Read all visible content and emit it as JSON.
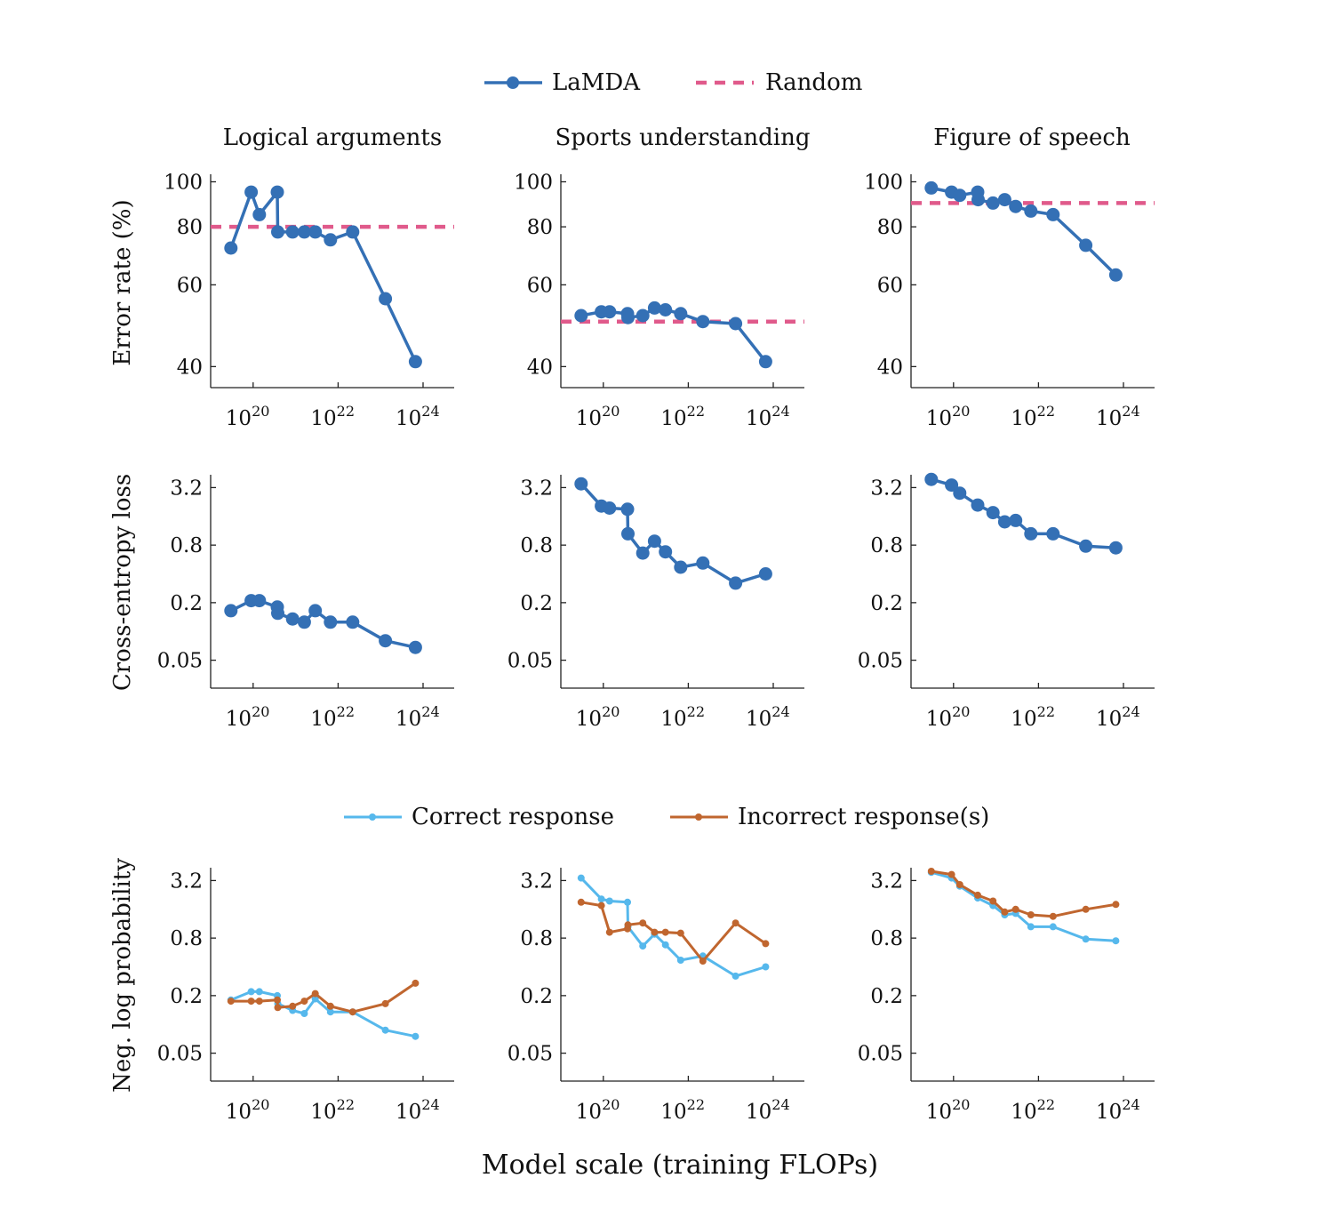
{
  "legend_top": [
    {
      "label": "LaMDA",
      "color": "#3470b5",
      "style": "line-marker"
    },
    {
      "label": "Random",
      "color": "#e05a8b",
      "style": "dashed"
    }
  ],
  "legend_bottom": [
    {
      "label": "Correct response",
      "color": "#56b8ec",
      "style": "line-marker-small"
    },
    {
      "label": "Incorrect response(s)",
      "color": "#c0662f",
      "style": "line-marker-small"
    }
  ],
  "panel_titles": [
    "Logical arguments",
    "Sports understanding",
    "Figure of speech"
  ],
  "row_labels": [
    "Error rate (%)",
    "Cross-entropy loss",
    "Neg. log probability"
  ],
  "xlabel": "Model scale (training FLOPs)",
  "chart_data": [
    {
      "type": "line",
      "title": "Logical arguments",
      "ylabel": "Error rate (%)",
      "x_scale": "log",
      "y_scale": "log",
      "x_ticks": [
        {
          "base": "10",
          "exp": "20",
          "value": 1e+20
        },
        {
          "base": "10",
          "exp": "22",
          "value": 1e+22
        },
        {
          "base": "10",
          "exp": "24",
          "value": 1e+24
        }
      ],
      "y_ticks": [
        {
          "label": "40",
          "value": 40
        },
        {
          "label": "60",
          "value": 60
        },
        {
          "label": "80",
          "value": 80
        },
        {
          "label": "100",
          "value": 100
        }
      ],
      "xlim": [
        1e+19,
        5.4e+24
      ],
      "ylim": [
        38,
        102
      ],
      "series": [
        {
          "name": "LaMDA",
          "color": "#3470b5",
          "x": [
            3e+19,
            9e+19,
            1.4e+20,
            3.7e+20,
            3.8e+20,
            8.5e+20,
            1.6e+21,
            2.9e+21,
            6.6e+21,
            2.2e+22,
            1.3e+23,
            6.6e+23
          ],
          "y": [
            72,
            95,
            85,
            95,
            78,
            78,
            78,
            78,
            75,
            78,
            56,
            41
          ]
        },
        {
          "name": "Random",
          "color": "#e05a8b",
          "dashed": true,
          "x": [
            1e+19,
            5.4e+24
          ],
          "y": [
            80,
            80
          ]
        }
      ]
    },
    {
      "type": "line",
      "title": "Sports understanding",
      "ylabel": "",
      "x_scale": "log",
      "y_scale": "log",
      "x_ticks": [
        {
          "base": "10",
          "exp": "20",
          "value": 1e+20
        },
        {
          "base": "10",
          "exp": "22",
          "value": 1e+22
        },
        {
          "base": "10",
          "exp": "24",
          "value": 1e+24
        }
      ],
      "y_ticks": [
        {
          "label": "40",
          "value": 40
        },
        {
          "label": "60",
          "value": 60
        },
        {
          "label": "80",
          "value": 80
        },
        {
          "label": "100",
          "value": 100
        }
      ],
      "xlim": [
        1e+19,
        5.4e+24
      ],
      "ylim": [
        38,
        102
      ],
      "series": [
        {
          "name": "LaMDA",
          "color": "#3470b5",
          "x": [
            3e+19,
            9e+19,
            1.4e+20,
            3.7e+20,
            3.8e+20,
            8.5e+20,
            1.6e+21,
            2.9e+21,
            6.6e+21,
            2.2e+22,
            1.3e+23,
            6.6e+23
          ],
          "y": [
            51.5,
            52.5,
            52.5,
            52,
            51,
            51.5,
            53.5,
            53,
            52,
            50,
            49.5,
            41
          ]
        },
        {
          "name": "Random",
          "color": "#e05a8b",
          "dashed": true,
          "x": [
            1e+19,
            5.4e+24
          ],
          "y": [
            50,
            50
          ]
        }
      ]
    },
    {
      "type": "line",
      "title": "Figure of speech",
      "ylabel": "",
      "x_scale": "log",
      "y_scale": "log",
      "x_ticks": [
        {
          "base": "10",
          "exp": "20",
          "value": 1e+20
        },
        {
          "base": "10",
          "exp": "22",
          "value": 1e+22
        },
        {
          "base": "10",
          "exp": "24",
          "value": 1e+24
        }
      ],
      "y_ticks": [
        {
          "label": "40",
          "value": 40
        },
        {
          "label": "60",
          "value": 60
        },
        {
          "label": "80",
          "value": 80
        },
        {
          "label": "100",
          "value": 100
        }
      ],
      "xlim": [
        1e+19,
        5.4e+24
      ],
      "ylim": [
        38,
        102
      ],
      "series": [
        {
          "name": "LaMDA",
          "color": "#3470b5",
          "x": [
            3e+19,
            9e+19,
            1.4e+20,
            3.7e+20,
            3.8e+20,
            8.5e+20,
            1.6e+21,
            2.9e+21,
            6.6e+21,
            2.2e+22,
            1.3e+23,
            6.6e+23
          ],
          "y": [
            97,
            95,
            93.5,
            95,
            91.5,
            90,
            91.5,
            88.5,
            86.5,
            85,
            73,
            63
          ]
        },
        {
          "name": "Random",
          "color": "#e05a8b",
          "dashed": true,
          "x": [
            1e+19,
            5.4e+24
          ],
          "y": [
            90,
            90
          ]
        }
      ]
    },
    {
      "type": "line",
      "title": "",
      "ylabel": "Cross-entropy loss",
      "x_scale": "log",
      "y_scale": "log",
      "x_ticks": [
        {
          "base": "10",
          "exp": "20",
          "value": 1e+20
        },
        {
          "base": "10",
          "exp": "22",
          "value": 1e+22
        },
        {
          "base": "10",
          "exp": "24",
          "value": 1e+24
        }
      ],
      "y_ticks": [
        {
          "label": "0.05",
          "value": 0.05
        },
        {
          "label": "0.2",
          "value": 0.2
        },
        {
          "label": "0.8",
          "value": 0.8
        },
        {
          "label": "3.2",
          "value": 3.2
        }
      ],
      "xlim": [
        1e+19,
        5.4e+24
      ],
      "ylim": [
        0.033,
        4.0
      ],
      "series": [
        {
          "name": "LaMDA",
          "color": "#3470b5",
          "x": [
            3e+19,
            9e+19,
            1.4e+20,
            3.7e+20,
            3.8e+20,
            8.5e+20,
            1.6e+21,
            2.9e+21,
            6.6e+21,
            2.2e+22,
            1.3e+23,
            6.6e+23
          ],
          "y": [
            0.165,
            0.21,
            0.21,
            0.18,
            0.155,
            0.135,
            0.125,
            0.165,
            0.125,
            0.125,
            0.08,
            0.068
          ]
        }
      ]
    },
    {
      "type": "line",
      "title": "",
      "ylabel": "",
      "x_scale": "log",
      "y_scale": "log",
      "x_ticks": [
        {
          "base": "10",
          "exp": "20",
          "value": 1e+20
        },
        {
          "base": "10",
          "exp": "22",
          "value": 1e+22
        },
        {
          "base": "10",
          "exp": "24",
          "value": 1e+24
        }
      ],
      "y_ticks": [
        {
          "label": "0.05",
          "value": 0.05
        },
        {
          "label": "0.2",
          "value": 0.2
        },
        {
          "label": "0.8",
          "value": 0.8
        },
        {
          "label": "3.2",
          "value": 3.2
        }
      ],
      "xlim": [
        1e+19,
        5.4e+24
      ],
      "ylim": [
        0.033,
        4.0
      ],
      "series": [
        {
          "name": "LaMDA",
          "color": "#3470b5",
          "x": [
            3e+19,
            9e+19,
            1.4e+20,
            3.7e+20,
            3.8e+20,
            8.5e+20,
            1.6e+21,
            2.9e+21,
            6.6e+21,
            2.2e+22,
            1.3e+23,
            6.6e+23
          ],
          "y": [
            3.5,
            2.05,
            1.95,
            1.9,
            1.05,
            0.66,
            0.88,
            0.68,
            0.47,
            0.52,
            0.32,
            0.4
          ]
        }
      ]
    },
    {
      "type": "line",
      "title": "",
      "ylabel": "",
      "x_scale": "log",
      "y_scale": "log",
      "x_ticks": [
        {
          "base": "10",
          "exp": "20",
          "value": 1e+20
        },
        {
          "base": "10",
          "exp": "22",
          "value": 1e+22
        },
        {
          "base": "10",
          "exp": "24",
          "value": 1e+24
        }
      ],
      "y_ticks": [
        {
          "label": "0.05",
          "value": 0.05
        },
        {
          "label": "0.2",
          "value": 0.2
        },
        {
          "label": "0.8",
          "value": 0.8
        },
        {
          "label": "3.2",
          "value": 3.2
        }
      ],
      "xlim": [
        1e+19,
        5.4e+24
      ],
      "ylim": [
        0.033,
        4.0
      ],
      "series": [
        {
          "name": "LaMDA",
          "color": "#3470b5",
          "x": [
            3e+19,
            9e+19,
            1.4e+20,
            3.7e+20,
            8.5e+20,
            1.6e+21,
            2.9e+21,
            6.6e+21,
            2.2e+22,
            1.3e+23,
            6.6e+23
          ],
          "y": [
            3.9,
            3.4,
            2.8,
            2.1,
            1.75,
            1.4,
            1.45,
            1.05,
            1.05,
            0.78,
            0.75
          ]
        }
      ]
    },
    {
      "type": "line",
      "title": "",
      "ylabel": "Neg. log probability",
      "x_scale": "log",
      "y_scale": "log",
      "x_ticks": [
        {
          "base": "10",
          "exp": "20",
          "value": 1e+20
        },
        {
          "base": "10",
          "exp": "22",
          "value": 1e+22
        },
        {
          "base": "10",
          "exp": "24",
          "value": 1e+24
        }
      ],
      "y_ticks": [
        {
          "label": "0.05",
          "value": 0.05
        },
        {
          "label": "0.2",
          "value": 0.2
        },
        {
          "label": "0.8",
          "value": 0.8
        },
        {
          "label": "3.2",
          "value": 3.2
        }
      ],
      "xlim": [
        1e+19,
        5.4e+24
      ],
      "ylim": [
        0.033,
        4.0
      ],
      "series": [
        {
          "name": "Correct response",
          "color": "#56b8ec",
          "x": [
            3e+19,
            9e+19,
            1.4e+20,
            3.7e+20,
            3.8e+20,
            8.5e+20,
            1.6e+21,
            2.9e+21,
            6.6e+21,
            2.2e+22,
            1.3e+23,
            6.6e+23
          ],
          "y": [
            0.18,
            0.22,
            0.22,
            0.2,
            0.165,
            0.14,
            0.13,
            0.185,
            0.135,
            0.135,
            0.087,
            0.075
          ]
        },
        {
          "name": "Incorrect response(s)",
          "color": "#c0662f",
          "x": [
            3e+19,
            9e+19,
            1.4e+20,
            3.7e+20,
            3.8e+20,
            8.5e+20,
            1.6e+21,
            2.9e+21,
            6.6e+21,
            2.2e+22,
            1.3e+23,
            6.6e+23
          ],
          "y": [
            0.175,
            0.175,
            0.175,
            0.18,
            0.15,
            0.155,
            0.175,
            0.21,
            0.155,
            0.135,
            0.165,
            0.27
          ]
        }
      ]
    },
    {
      "type": "line",
      "title": "",
      "ylabel": "",
      "x_scale": "log",
      "y_scale": "log",
      "x_ticks": [
        {
          "base": "10",
          "exp": "20",
          "value": 1e+20
        },
        {
          "base": "10",
          "exp": "22",
          "value": 1e+22
        },
        {
          "base": "10",
          "exp": "24",
          "value": 1e+24
        }
      ],
      "y_ticks": [
        {
          "label": "0.05",
          "value": 0.05
        },
        {
          "label": "0.2",
          "value": 0.2
        },
        {
          "label": "0.8",
          "value": 0.8
        },
        {
          "label": "3.2",
          "value": 3.2
        }
      ],
      "xlim": [
        1e+19,
        5.4e+24
      ],
      "ylim": [
        0.033,
        4.0
      ],
      "series": [
        {
          "name": "Correct response",
          "color": "#56b8ec",
          "x": [
            3e+19,
            9e+19,
            1.4e+20,
            3.7e+20,
            3.8e+20,
            8.5e+20,
            1.6e+21,
            2.9e+21,
            6.6e+21,
            2.2e+22,
            1.3e+23,
            6.6e+23
          ],
          "y": [
            3.4,
            2.05,
            1.95,
            1.9,
            1.05,
            0.66,
            0.88,
            0.68,
            0.47,
            0.52,
            0.32,
            0.4
          ]
        },
        {
          "name": "Incorrect response(s)",
          "color": "#c0662f",
          "x": [
            3e+19,
            9e+19,
            1.4e+20,
            3.7e+20,
            3.8e+20,
            8.5e+20,
            1.6e+21,
            2.9e+21,
            6.6e+21,
            2.2e+22,
            1.3e+23,
            6.6e+23
          ],
          "y": [
            1.9,
            1.75,
            0.92,
            1.0,
            1.1,
            1.15,
            0.92,
            0.92,
            0.9,
            0.46,
            1.15,
            0.7
          ]
        }
      ]
    },
    {
      "type": "line",
      "title": "",
      "ylabel": "",
      "x_scale": "log",
      "y_scale": "log",
      "x_ticks": [
        {
          "base": "10",
          "exp": "20",
          "value": 1e+20
        },
        {
          "base": "10",
          "exp": "22",
          "value": 1e+22
        },
        {
          "base": "10",
          "exp": "24",
          "value": 1e+24
        }
      ],
      "y_ticks": [
        {
          "label": "0.05",
          "value": 0.05
        },
        {
          "label": "0.2",
          "value": 0.2
        },
        {
          "label": "0.8",
          "value": 0.8
        },
        {
          "label": "3.2",
          "value": 3.2
        }
      ],
      "xlim": [
        1e+19,
        5.4e+24
      ],
      "ylim": [
        0.033,
        4.0
      ],
      "series": [
        {
          "name": "Correct response",
          "color": "#56b8ec",
          "x": [
            3e+19,
            9e+19,
            1.4e+20,
            3.7e+20,
            8.5e+20,
            1.6e+21,
            2.9e+21,
            6.6e+21,
            2.2e+22,
            1.3e+23,
            6.6e+23
          ],
          "y": [
            3.9,
            3.4,
            2.8,
            2.1,
            1.75,
            1.4,
            1.45,
            1.05,
            1.05,
            0.78,
            0.75
          ]
        },
        {
          "name": "Incorrect response(s)",
          "color": "#c0662f",
          "x": [
            3e+19,
            9e+19,
            1.4e+20,
            3.7e+20,
            8.5e+20,
            1.6e+21,
            2.9e+21,
            6.6e+21,
            2.2e+22,
            1.3e+23,
            6.6e+23
          ],
          "y": [
            4.0,
            3.7,
            2.9,
            2.25,
            1.95,
            1.5,
            1.6,
            1.4,
            1.35,
            1.6,
            1.8
          ]
        }
      ]
    }
  ]
}
